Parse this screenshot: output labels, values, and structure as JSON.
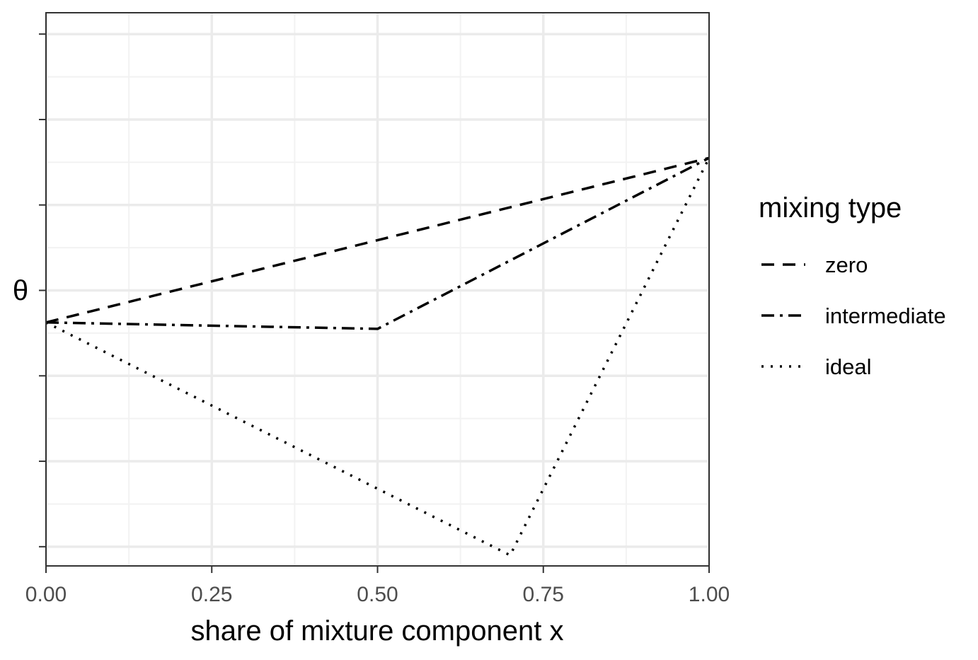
{
  "chart_data": {
    "type": "line",
    "xlabel": "share of mixture component x",
    "ylabel": "θ",
    "xlim": [
      0,
      1
    ],
    "ylim": [
      -6.9,
      19
    ],
    "x_ticks": [
      "0.00",
      "0.25",
      "0.50",
      "0.75",
      "1.00"
    ],
    "y_tick_values": [
      -6,
      -2,
      2,
      6,
      10,
      14,
      18
    ],
    "y_tick_labels": [],
    "grid": true,
    "legend": {
      "title": "mixing type",
      "position": "right"
    },
    "series": [
      {
        "name": "zero",
        "style": "dashed",
        "x": [
          0,
          1
        ],
        "y": [
          4.5,
          12.2
        ]
      },
      {
        "name": "intermediate",
        "style": "dotdash",
        "x": [
          0,
          0.5,
          1
        ],
        "y": [
          4.5,
          4.2,
          12.2
        ]
      },
      {
        "name": "ideal",
        "style": "dotted",
        "x": [
          0,
          0.7,
          1
        ],
        "y": [
          4.5,
          -6.4,
          12.2
        ]
      }
    ],
    "colors": {
      "line": "#000000",
      "grid_major": "#ebebeb",
      "grid_minor": "#f2f2f2",
      "panel_border": "#333333",
      "tick_text": "#4d4d4d"
    }
  }
}
